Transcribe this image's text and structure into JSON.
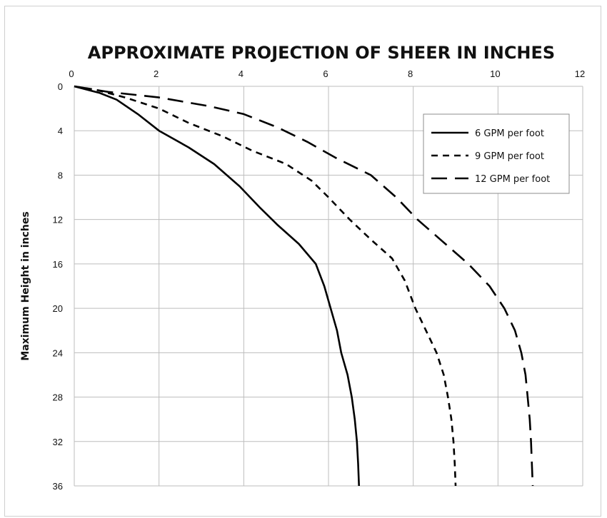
{
  "chart_data": {
    "type": "line",
    "title": "APPROXIMATE PROJECTION OF SHEER IN INCHES",
    "xlabel": "",
    "ylabel": "Maximum Height in inches",
    "xlim": [
      0,
      12
    ],
    "ylim": [
      0,
      36
    ],
    "y_inverted": true,
    "x_axis_position": "top",
    "x_ticks": [
      0,
      2,
      4,
      6,
      8,
      10,
      12
    ],
    "y_ticks": [
      0,
      4,
      8,
      12,
      16,
      20,
      24,
      28,
      32,
      36
    ],
    "grid": true,
    "legend_position": "top-right",
    "series": [
      {
        "name": "6 GPM per foot",
        "dash": "solid",
        "points": [
          [
            0,
            0
          ],
          [
            0.6,
            0.6
          ],
          [
            1.0,
            1.2
          ],
          [
            1.5,
            2.5
          ],
          [
            2.0,
            4.0
          ],
          [
            2.7,
            5.5
          ],
          [
            3.3,
            7.0
          ],
          [
            3.9,
            9.0
          ],
          [
            4.4,
            11.0
          ],
          [
            4.8,
            12.5
          ],
          [
            5.3,
            14.2
          ],
          [
            5.7,
            16.0
          ],
          [
            5.9,
            18.0
          ],
          [
            6.05,
            20.0
          ],
          [
            6.2,
            22.0
          ],
          [
            6.3,
            24.0
          ],
          [
            6.45,
            26.0
          ],
          [
            6.55,
            28.0
          ],
          [
            6.62,
            30.0
          ],
          [
            6.67,
            32.0
          ],
          [
            6.7,
            34.0
          ],
          [
            6.72,
            36.0
          ]
        ]
      },
      {
        "name": "9 GPM per foot",
        "dash": "short",
        "points": [
          [
            0,
            0
          ],
          [
            0.5,
            0.3
          ],
          [
            1.2,
            1.0
          ],
          [
            2.0,
            2.0
          ],
          [
            2.7,
            3.3
          ],
          [
            3.5,
            4.5
          ],
          [
            4.2,
            5.8
          ],
          [
            5.0,
            7.0
          ],
          [
            5.6,
            8.5
          ],
          [
            6.0,
            10.0
          ],
          [
            6.5,
            12.0
          ],
          [
            7.0,
            13.8
          ],
          [
            7.5,
            15.5
          ],
          [
            7.8,
            17.5
          ],
          [
            8.05,
            20.0
          ],
          [
            8.3,
            22.0
          ],
          [
            8.55,
            24.0
          ],
          [
            8.72,
            26.0
          ],
          [
            8.82,
            28.0
          ],
          [
            8.9,
            30.0
          ],
          [
            8.95,
            32.0
          ],
          [
            8.98,
            34.0
          ],
          [
            9.0,
            36.0
          ]
        ]
      },
      {
        "name": "12 GPM per foot",
        "dash": "long",
        "points": [
          [
            0,
            0
          ],
          [
            0.8,
            0.5
          ],
          [
            2.0,
            1.0
          ],
          [
            3.2,
            1.8
          ],
          [
            4.0,
            2.5
          ],
          [
            4.8,
            3.7
          ],
          [
            5.5,
            5.0
          ],
          [
            6.2,
            6.5
          ],
          [
            7.0,
            8.0
          ],
          [
            7.6,
            10.0
          ],
          [
            8.1,
            12.0
          ],
          [
            8.7,
            14.0
          ],
          [
            9.3,
            16.0
          ],
          [
            9.8,
            18.0
          ],
          [
            10.15,
            20.0
          ],
          [
            10.4,
            22.0
          ],
          [
            10.55,
            24.0
          ],
          [
            10.65,
            26.0
          ],
          [
            10.7,
            28.0
          ],
          [
            10.75,
            30.0
          ],
          [
            10.78,
            32.0
          ],
          [
            10.8,
            34.0
          ],
          [
            10.82,
            36.0
          ]
        ]
      }
    ]
  }
}
